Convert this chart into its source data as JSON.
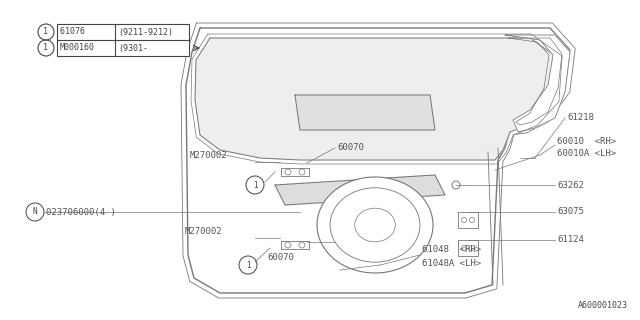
{
  "bg_color": "#ffffff",
  "part_number_bottom": "A600001023",
  "table": {
    "rows": [
      {
        "symbol": "1",
        "part": "61076   ",
        "note": "(9211-9212)"
      },
      {
        "symbol": "1",
        "part": "M000160",
        "note": "(9301-"
      }
    ]
  },
  "label_color": "#555555",
  "line_color": "#777777"
}
